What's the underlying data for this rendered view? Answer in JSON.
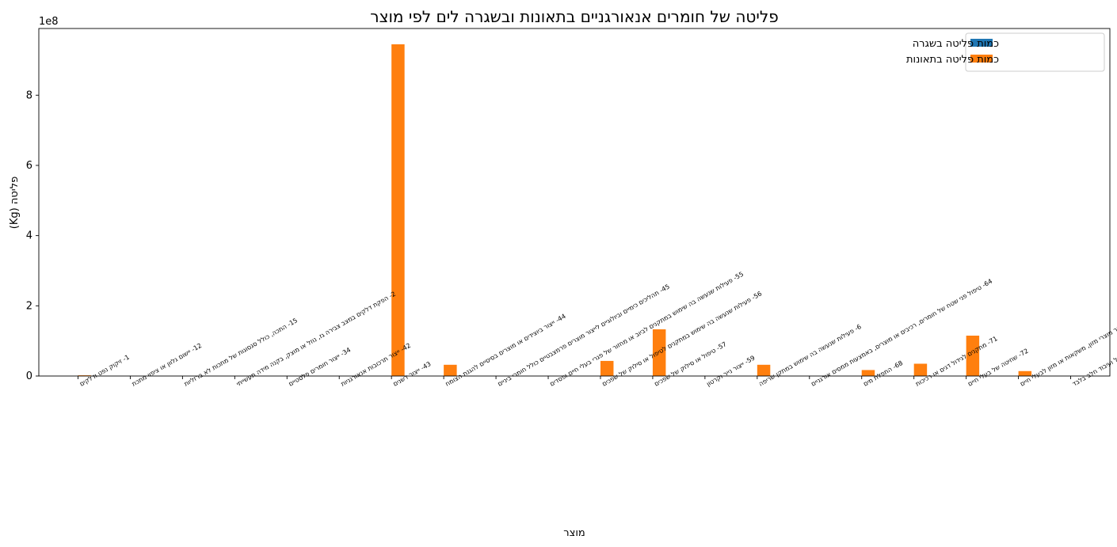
{
  "chart_data": {
    "type": "bar",
    "title": "פליטה של חומרים אנאורגניים בתאונות ובשגרה לים לפי מוצר",
    "xlabel": "מוצר",
    "ylabel": "פליטה (Kg)",
    "y_scale_label": "1e8",
    "y_scale": 100000000,
    "ylim": [
      0,
      990000000
    ],
    "yticks": [
      0,
      200000000,
      400000000,
      600000000,
      800000000
    ],
    "ytick_labels": [
      "0",
      "2",
      "4",
      "6",
      "8"
    ],
    "legend_position": "top-right",
    "categories": [
      "1- זיקוק נפט ודלקים",
      "12- יישום גלוון או ציפוי מתכת",
      "15- התכה, כולל סגסוגות של מתכות לא ברזליות",
      "2- הפקת דלקים במצב צבירה גז, נוזל או מוצק, בקנה מידה תעשייתי",
      "34- ייצור חומרים פלסטיים",
      "42- ייצור תרכובות אנאורגניות",
      "43- ייצור דשנים",
      "44- ייצור ביוצידים או מוצרים בסיסיים להגנת הצומח",
      "45- תהליכים כימיים וביולוגיים לייצור מוצרים  פרמצבטיים כולל חומרי ביניים",
      "55- פעילות שנעשה בה שימוש במתקנים לביוב או מחזור של פגרי בעלי חיים ופסדים",
      "56- פעילות שנעשה בה שימוש במתקנים לטיפול או סילוק של שפכים",
      "57- טיפול או סילוק של שפכים",
      "59- ייצור נייר וקרטון",
      "6- פעילות שנעשה בה שימוש במתקן שריפה",
      "64- טיפול פני שטח של חומרים, רכיבים או מוצרים, באמצעות  ממסים אורגניים",
      "68- התפלת מים",
      "71- מתקנים לגידול דגים או רכיכות",
      "72- שחיטה של בעלי חיים",
      "73- טיפול ועיבוד, של חומרי גלם מהחי או מהצומח,לייצור מוצרי מזון, משקאות או מזון לבעלי חיים",
      "74- טיפול ועיבוד חלב בלבד"
    ],
    "series": [
      {
        "name": "כמות פליטה בשגרה",
        "color": "#1f77b4",
        "values": [
          0,
          0,
          0,
          0,
          0,
          0,
          0,
          0,
          0,
          0,
          0,
          0,
          0,
          0,
          0,
          0,
          0,
          0,
          0,
          0
        ]
      },
      {
        "name": "כמות פליטה בתאונות",
        "color": "#ff7f0e",
        "values": [
          2000000,
          0,
          0,
          0,
          0,
          0,
          945000000,
          32000000,
          0,
          0,
          43000000,
          133000000,
          0,
          32000000,
          0,
          17000000,
          35000000,
          115000000,
          14000000,
          0
        ]
      }
    ]
  }
}
